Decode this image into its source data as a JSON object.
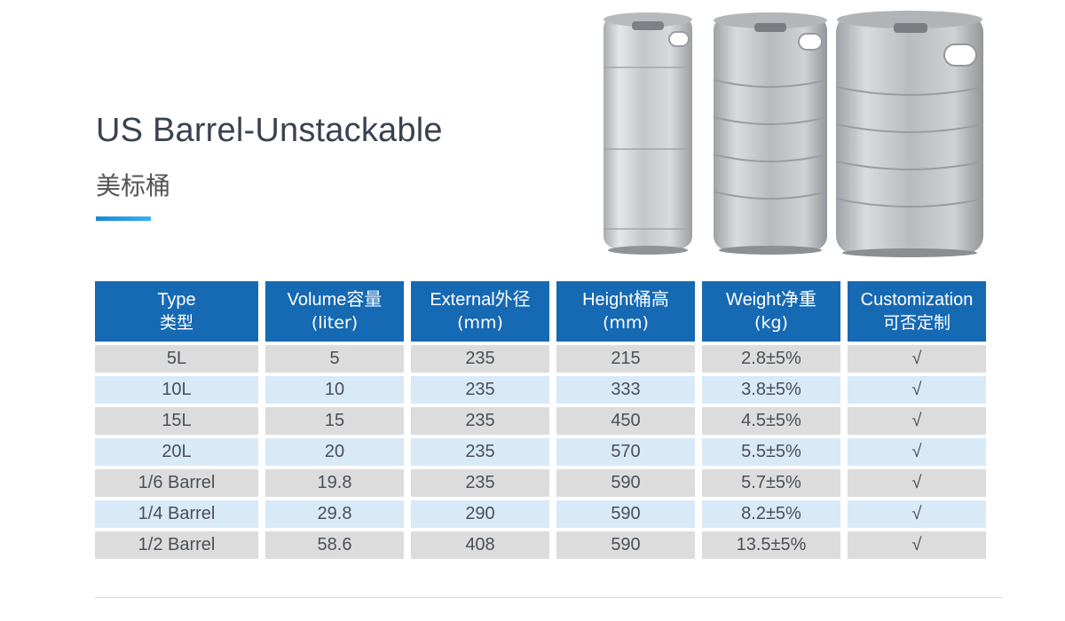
{
  "header": {
    "title": "US Barrel-Unstackable",
    "subtitle": "美标桶"
  },
  "colors": {
    "header_bg": "#1669b3",
    "row_gray": "#dcdcdc",
    "row_blue": "#d8e9f7",
    "accent": "#1f86d6"
  },
  "products": {
    "image_subject": "three stainless steel US beer kegs (kegs-product-photo)"
  },
  "table": {
    "headers": [
      {
        "line1": "Type",
        "line2": "类型"
      },
      {
        "line1": "Volume容量",
        "line2": "(liter)"
      },
      {
        "line1": "External外径",
        "line2": "(mm)"
      },
      {
        "line1": "Height桶高",
        "line2": "(mm)"
      },
      {
        "line1": "Weight净重",
        "line2": "(kg)"
      },
      {
        "line1": "Customization",
        "line2": "可否定制"
      }
    ],
    "rows": [
      [
        "5L",
        "5",
        "235",
        "215",
        "2.8±5%",
        "√"
      ],
      [
        "10L",
        "10",
        "235",
        "333",
        "3.8±5%",
        "√"
      ],
      [
        "15L",
        "15",
        "235",
        "450",
        "4.5±5%",
        "√"
      ],
      [
        "20L",
        "20",
        "235",
        "570",
        "5.5±5%",
        "√"
      ],
      [
        "1/6 Barrel",
        "19.8",
        "235",
        "590",
        "5.7±5%",
        "√"
      ],
      [
        "1/4 Barrel",
        "29.8",
        "290",
        "590",
        "8.2±5%",
        "√"
      ],
      [
        "1/2 Barrel",
        "58.6",
        "408",
        "590",
        "13.5±5%",
        "√"
      ]
    ]
  }
}
